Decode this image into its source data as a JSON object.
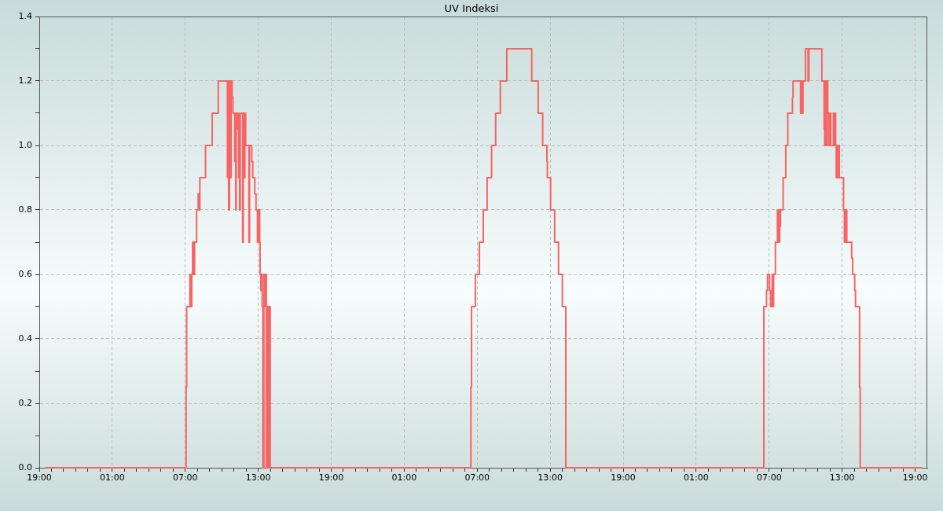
{
  "chart_data": {
    "type": "step",
    "title": "UV Indeksi",
    "color": "#f66464",
    "grid": true,
    "xlim": [
      "2000-01-01T19:00",
      "2000-01-04T20:00"
    ],
    "ylim": [
      0,
      1.4
    ],
    "xticks": [
      {
        "value": "2000-01-01T19:00",
        "label": "19:00"
      },
      {
        "value": "2000-01-01T20:00",
        "label": null
      },
      {
        "value": "2000-01-01T21:00",
        "label": null
      },
      {
        "value": "2000-01-01T22:00",
        "label": null
      },
      {
        "value": "2000-01-01T23:00",
        "label": null
      },
      {
        "value": "2000-01-02T00:00",
        "label": null
      },
      {
        "value": "2000-01-02T01:00",
        "label": "01:00"
      },
      {
        "value": "2000-01-02T02:00",
        "label": null
      },
      {
        "value": "2000-01-02T03:00",
        "label": null
      },
      {
        "value": "2000-01-02T04:00",
        "label": null
      },
      {
        "value": "2000-01-02T05:00",
        "label": null
      },
      {
        "value": "2000-01-02T06:00",
        "label": null
      },
      {
        "value": "2000-01-02T07:00",
        "label": "07:00"
      },
      {
        "value": "2000-01-02T08:00",
        "label": null
      },
      {
        "value": "2000-01-02T09:00",
        "label": null
      },
      {
        "value": "2000-01-02T10:00",
        "label": null
      },
      {
        "value": "2000-01-02T11:00",
        "label": null
      },
      {
        "value": "2000-01-02T12:00",
        "label": null
      },
      {
        "value": "2000-01-02T13:00",
        "label": "13:00"
      },
      {
        "value": "2000-01-02T14:00",
        "label": null
      },
      {
        "value": "2000-01-02T15:00",
        "label": null
      },
      {
        "value": "2000-01-02T16:00",
        "label": null
      },
      {
        "value": "2000-01-02T17:00",
        "label": null
      },
      {
        "value": "2000-01-02T18:00",
        "label": null
      },
      {
        "value": "2000-01-02T19:00",
        "label": "19:00"
      },
      {
        "value": "2000-01-02T20:00",
        "label": null
      },
      {
        "value": "2000-01-02T21:00",
        "label": null
      },
      {
        "value": "2000-01-02T22:00",
        "label": null
      },
      {
        "value": "2000-01-02T23:00",
        "label": null
      },
      {
        "value": "2000-01-03T00:00",
        "label": null
      },
      {
        "value": "2000-01-03T01:00",
        "label": "01:00"
      },
      {
        "value": "2000-01-03T02:00",
        "label": null
      },
      {
        "value": "2000-01-03T03:00",
        "label": null
      },
      {
        "value": "2000-01-03T04:00",
        "label": null
      },
      {
        "value": "2000-01-03T05:00",
        "label": null
      },
      {
        "value": "2000-01-03T06:00",
        "label": null
      },
      {
        "value": "2000-01-03T07:00",
        "label": "07:00"
      },
      {
        "value": "2000-01-03T08:00",
        "label": null
      },
      {
        "value": "2000-01-03T09:00",
        "label": null
      },
      {
        "value": "2000-01-03T10:00",
        "label": null
      },
      {
        "value": "2000-01-03T11:00",
        "label": null
      },
      {
        "value": "2000-01-03T12:00",
        "label": null
      },
      {
        "value": "2000-01-03T13:00",
        "label": "13:00"
      },
      {
        "value": "2000-01-03T14:00",
        "label": null
      },
      {
        "value": "2000-01-03T15:00",
        "label": null
      },
      {
        "value": "2000-01-03T16:00",
        "label": null
      },
      {
        "value": "2000-01-03T17:00",
        "label": null
      },
      {
        "value": "2000-01-03T18:00",
        "label": null
      },
      {
        "value": "2000-01-03T19:00",
        "label": "19:00"
      },
      {
        "value": "2000-01-03T20:00",
        "label": null
      },
      {
        "value": "2000-01-03T21:00",
        "label": null
      },
      {
        "value": "2000-01-03T22:00",
        "label": null
      },
      {
        "value": "2000-01-03T23:00",
        "label": null
      },
      {
        "value": "2000-01-04T00:00",
        "label": null
      },
      {
        "value": "2000-01-04T01:00",
        "label": "01:00"
      },
      {
        "value": "2000-01-04T02:00",
        "label": null
      },
      {
        "value": "2000-01-04T03:00",
        "label": null
      },
      {
        "value": "2000-01-04T04:00",
        "label": null
      },
      {
        "value": "2000-01-04T05:00",
        "label": null
      },
      {
        "value": "2000-01-04T06:00",
        "label": null
      },
      {
        "value": "2000-01-04T07:00",
        "label": "07:00"
      },
      {
        "value": "2000-01-04T08:00",
        "label": null
      },
      {
        "value": "2000-01-04T09:00",
        "label": null
      },
      {
        "value": "2000-01-04T10:00",
        "label": null
      },
      {
        "value": "2000-01-04T11:00",
        "label": null
      },
      {
        "value": "2000-01-04T12:00",
        "label": null
      },
      {
        "value": "2000-01-04T13:00",
        "label": "13:00"
      },
      {
        "value": "2000-01-04T14:00",
        "label": null
      },
      {
        "value": "2000-01-04T15:00",
        "label": null
      },
      {
        "value": "2000-01-04T16:00",
        "label": null
      },
      {
        "value": "2000-01-04T17:00",
        "label": null
      },
      {
        "value": "2000-01-04T18:00",
        "label": null
      },
      {
        "value": "2000-01-04T19:00",
        "label": "19:00"
      }
    ],
    "yticks": [
      {
        "value": 0,
        "label": "0.0"
      },
      {
        "value": 0.1,
        "label": null
      },
      0.2,
      {
        "value": 0.3,
        "label": null
      },
      0.4,
      {
        "value": 0.5,
        "label": null
      },
      0.6,
      {
        "value": 0.7,
        "label": null
      },
      0.8,
      {
        "value": 0.9,
        "label": null
      },
      {
        "value": 1,
        "label": "1.0"
      },
      {
        "value": 1.1,
        "label": null
      },
      1.2,
      {
        "value": 1.3,
        "label": null
      },
      1.4
    ],
    "x": [
      "2000-01-01T19:30",
      "2000-01-02T07:04",
      "2000-01-02T07:07",
      "2000-01-02T07:23",
      "2000-01-02T07:27",
      "2000-01-02T07:32",
      "2000-01-02T07:36",
      "2000-01-02T07:41",
      "2000-01-02T07:46",
      "2000-01-02T07:56",
      "2000-01-02T08:04",
      "2000-01-02T08:08",
      "2000-01-02T08:12",
      "2000-01-02T08:40",
      "2000-01-02T09:13",
      "2000-01-02T09:43",
      "2000-01-02T10:28",
      "2000-01-02T10:30",
      "2000-01-02T10:34",
      "2000-01-02T10:38",
      "2000-01-02T10:42",
      "2000-01-02T10:46",
      "2000-01-02T10:51",
      "2000-01-02T10:55",
      "2000-01-02T11:04",
      "2000-01-02T11:06",
      "2000-01-02T11:09",
      "2000-01-02T11:11",
      "2000-01-02T11:19",
      "2000-01-02T11:23",
      "2000-01-02T11:26",
      "2000-01-02T11:28",
      "2000-01-02T11:31",
      "2000-01-02T11:43",
      "2000-01-02T11:46",
      "2000-01-02T11:52",
      "2000-01-02T11:54",
      "2000-01-02T11:58",
      "2000-01-02T12:14",
      "2000-01-02T12:17",
      "2000-01-02T12:28",
      "2000-01-02T12:33",
      "2000-01-02T12:43",
      "2000-01-02T12:49",
      "2000-01-02T12:56",
      "2000-01-02T13:01",
      "2000-01-02T13:07",
      "2000-01-02T13:09",
      "2000-01-02T13:13",
      "2000-01-02T13:17",
      "2000-01-02T13:19",
      "2000-01-02T13:23",
      "2000-01-02T13:28",
      "2000-01-02T13:34",
      "2000-01-02T13:36",
      "2000-01-02T13:40",
      "2000-01-02T13:44",
      "2000-01-02T13:48",
      "2000-01-02T13:53",
      "2000-01-02T13:59",
      "2000-01-03T06:29",
      "2000-01-03T06:32",
      "2000-01-03T06:51",
      "2000-01-03T07:11",
      "2000-01-03T07:30",
      "2000-01-03T07:49",
      "2000-01-03T08:11",
      "2000-01-03T08:31",
      "2000-01-03T08:54",
      "2000-01-03T09:26",
      "2000-01-03T11:29",
      "2000-01-03T12:01",
      "2000-01-03T12:23",
      "2000-01-03T12:44",
      "2000-01-03T12:46",
      "2000-01-03T13:02",
      "2000-01-03T13:22",
      "2000-01-03T13:41",
      "2000-01-03T14:00",
      "2000-01-03T14:17",
      "2000-01-04T06:34",
      "2000-01-04T06:47",
      "2000-01-04T06:52",
      "2000-01-04T07:02",
      "2000-01-04T07:07",
      "2000-01-04T07:15",
      "2000-01-04T07:18",
      "2000-01-04T07:22",
      "2000-01-04T07:31",
      "2000-01-04T07:41",
      "2000-01-04T07:43",
      "2000-01-04T07:46",
      "2000-01-04T07:49",
      "2000-01-04T07:52",
      "2000-01-04T07:54",
      "2000-01-04T07:56",
      "2000-01-04T08:09",
      "2000-01-04T08:22",
      "2000-01-04T08:32",
      "2000-01-04T08:55",
      "2000-01-04T08:58",
      "2000-01-04T09:35",
      "2000-01-04T09:37",
      "2000-01-04T09:40",
      "2000-01-04T09:43",
      "2000-01-04T09:45",
      "2000-01-04T09:47",
      "2000-01-04T09:59",
      "2000-01-04T10:12",
      "2000-01-04T10:16",
      "2000-01-04T11:20",
      "2000-01-04T11:31",
      "2000-01-04T11:34",
      "2000-01-04T11:36",
      "2000-01-04T11:38",
      "2000-01-04T11:41",
      "2000-01-04T11:43",
      "2000-01-04T11:45",
      "2000-01-04T11:49",
      "2000-01-04T11:54",
      "2000-01-04T11:56",
      "2000-01-04T11:58",
      "2000-01-04T12:01",
      "2000-01-04T12:04",
      "2000-01-04T12:17",
      "2000-01-04T12:20",
      "2000-01-04T12:22",
      "2000-01-04T12:28",
      "2000-01-04T12:31",
      "2000-01-04T12:38",
      "2000-01-04T12:42",
      "2000-01-04T12:43",
      "2000-01-04T12:46",
      "2000-01-04T13:07",
      "2000-01-04T13:11",
      "2000-01-04T13:14",
      "2000-01-04T13:16",
      "2000-01-04T13:18",
      "2000-01-04T13:20",
      "2000-01-04T13:23",
      "2000-01-04T13:47",
      "2000-01-04T13:52",
      "2000-01-04T14:02",
      "2000-01-04T14:06",
      "2000-01-04T14:26",
      "2000-01-04T14:29",
      "2000-01-04T19:30"
    ],
    "values": [
      0,
      0.25,
      0.5,
      0.6,
      0.5,
      0.6,
      0.7,
      0.6,
      0.7,
      0.8,
      0.85,
      0.8,
      0.9,
      1,
      1.1,
      1.2,
      0.9,
      1.2,
      0.8,
      1.2,
      0.9,
      1.2,
      1.15,
      1.1,
      0.95,
      1.1,
      0.8,
      1.1,
      1.05,
      0.9,
      1.1,
      0.8,
      1.1,
      0.7,
      1.1,
      0.9,
      1.1,
      1,
      0.7,
      1,
      0.95,
      0.9,
      0.85,
      0.8,
      0.7,
      0.8,
      0.7,
      0.6,
      0.55,
      0.6,
      0.5,
      0,
      0.6,
      0.5,
      0.6,
      0,
      0.5,
      0,
      0.5,
      0,
      0.25,
      0.5,
      0.6,
      0.7,
      0.8,
      0.9,
      1,
      1.1,
      1.2,
      1.3,
      1.2,
      1.1,
      1,
      0.95,
      0.9,
      0.8,
      0.7,
      0.6,
      0.5,
      0,
      0.5,
      0.55,
      0.6,
      0.55,
      0.5,
      0.6,
      0.5,
      0.6,
      0.7,
      0.8,
      0.7,
      0.8,
      0.7,
      0.8,
      0.75,
      0.8,
      0.9,
      1,
      1.1,
      1.15,
      1.2,
      1.1,
      1.2,
      1.1,
      1.15,
      1.1,
      1.2,
      1.3,
      1.2,
      1.3,
      1.2,
      1.05,
      1,
      1.2,
      1.1,
      1.2,
      1,
      1.2,
      1.1,
      1,
      1.1,
      1.05,
      1.1,
      1,
      1.1,
      1,
      1.1,
      1,
      0.9,
      1,
      0.9,
      1,
      0.9,
      0.8,
      0.7,
      0.8,
      0.75,
      0.7,
      0.8,
      0.7,
      0.65,
      0.6,
      0.55,
      0.5,
      0.25,
      0,
      0
    ]
  }
}
